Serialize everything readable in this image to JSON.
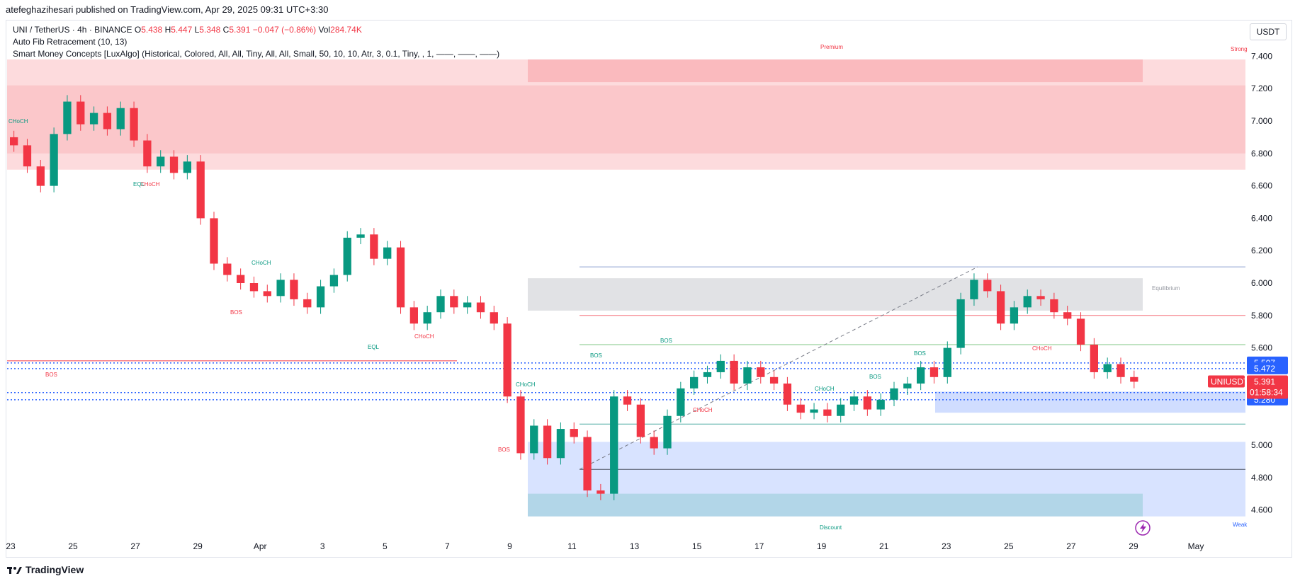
{
  "publish_line": "atefeghazihesari published on TradingView.com, Apr 29, 2025 09:31 UTC+3:30",
  "legend": {
    "symbol": "UNI / TetherUS · 4h · BINANCE",
    "o_label": "O",
    "o_value": "5.438",
    "h_label": "H",
    "h_value": "5.447",
    "l_label": "L",
    "l_value": "5.348",
    "c_label": "C",
    "c_value": "5.391",
    "change": "−0.047 (−0.86%)",
    "vol_label": "Vol",
    "vol_value": "284.74K",
    "indicator_1": "Auto Fib Retracement (10, 13)",
    "indicator_2": "Smart Money Concepts [LuxAlgo] (Historical, Colored, All, All, Tiny, All, All, Small, 50, 10, 10, Atr, 3, 0.1, Tiny, , 1, ——, ——, ——)"
  },
  "currency": "USDT",
  "footer_brand": "TradingView",
  "colors": {
    "up": "#089981",
    "down": "#f23645",
    "premium": "#f23645",
    "discount": "#2962ff",
    "fib_line": "#787b86"
  },
  "chart_data": {
    "type": "candlestick",
    "symbol": "UNIUSDT",
    "x_ticks": [
      "23",
      "25",
      "27",
      "29",
      "Apr",
      "3",
      "5",
      "7",
      "9",
      "11",
      "13",
      "15",
      "17",
      "19",
      "21",
      "23",
      "25",
      "27",
      "29",
      "May"
    ],
    "y_ticks": [
      "7.400",
      "7.200",
      "7.000",
      "6.800",
      "6.600",
      "6.400",
      "6.200",
      "6.000",
      "5.800",
      "5.600",
      "5.000",
      "4.800",
      "4.600"
    ],
    "ylim": [
      4.55,
      7.45
    ],
    "series_close_path": [
      6.85,
      6.72,
      6.6,
      6.92,
      7.12,
      6.98,
      7.05,
      6.95,
      7.08,
      6.88,
      6.72,
      6.78,
      6.68,
      6.75,
      6.4,
      6.12,
      6.05,
      6.0,
      5.95,
      5.92,
      6.02,
      5.9,
      5.85,
      5.98,
      6.05,
      6.28,
      6.3,
      6.15,
      6.22,
      5.85,
      5.75,
      5.82,
      5.92,
      5.85,
      5.88,
      5.82,
      5.75,
      5.3,
      4.95,
      5.12,
      4.92,
      5.1,
      5.05,
      4.72,
      4.7,
      5.3,
      5.25,
      5.05,
      4.98,
      5.18,
      5.35,
      5.42,
      5.45,
      5.52,
      5.38,
      5.48,
      5.42,
      5.38,
      5.25,
      5.2,
      5.22,
      5.18,
      5.25,
      5.3,
      5.22,
      5.28,
      5.35,
      5.38,
      5.48,
      5.42,
      5.6,
      5.9,
      6.02,
      5.95,
      5.75,
      5.85,
      5.92,
      5.9,
      5.82,
      5.78,
      5.62,
      5.45,
      5.5,
      5.42,
      5.391
    ],
    "last_price": "5.391",
    "symbol_label": "UNIUSDT",
    "countdown": "01:58:34",
    "price_levels": [
      {
        "label": "5.507",
        "value": 5.507
      },
      {
        "label": "5.472",
        "value": 5.472
      },
      {
        "label": "5.324",
        "value": 5.324
      },
      {
        "label": "5.280",
        "value": 5.28
      }
    ],
    "zones": [
      {
        "kind": "premium",
        "from": 6.7,
        "to": 7.38
      },
      {
        "kind": "equilibrium",
        "from": 5.83,
        "to": 6.03
      },
      {
        "kind": "discount",
        "from": 4.56,
        "to": 5.02
      }
    ],
    "annotations": {
      "premium": "Premium",
      "equilibrium": "Equilibrium",
      "discount": "Discount",
      "strong": "Strong",
      "weak": "Weak",
      "bos": "BOS",
      "choch": "CHoCH",
      "eql": "EQL"
    }
  }
}
